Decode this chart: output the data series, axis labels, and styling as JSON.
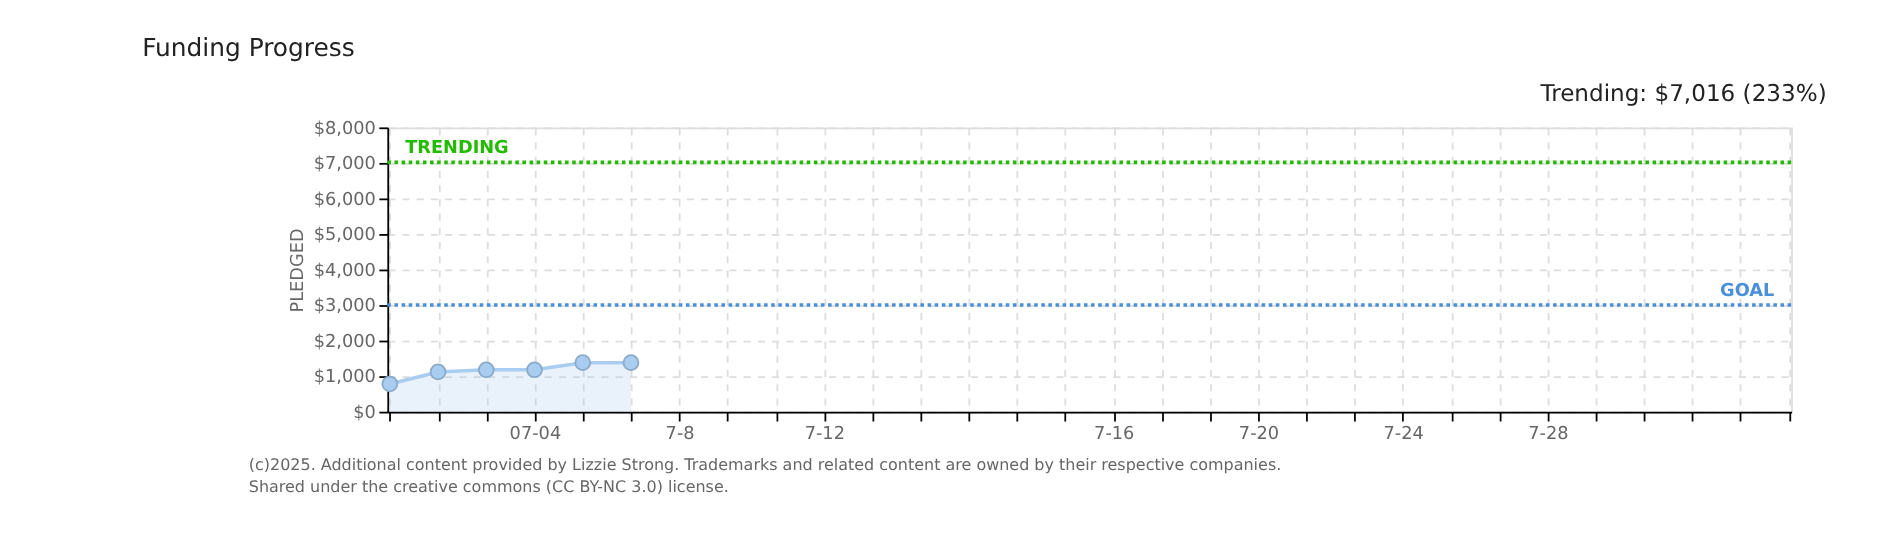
{
  "chart_data": {
    "type": "area",
    "title": "Funding Progress",
    "categories": [
      null,
      null,
      null,
      "07-04",
      null,
      null,
      "7-8",
      null,
      null,
      "7-12",
      null,
      null,
      null,
      null,
      null,
      "7-16",
      null,
      null,
      "7-20",
      null,
      null,
      "7-24",
      null,
      null,
      "7-28",
      null,
      null,
      null,
      null,
      null
    ],
    "series": [
      {
        "color": "#a9cdf0",
        "values": [
          780,
          1120,
          1180,
          1180,
          1380,
          1380,
          null,
          null,
          null,
          null,
          null,
          null,
          null,
          null,
          null,
          null,
          null,
          null,
          null,
          null,
          null,
          null,
          null,
          null,
          null,
          null,
          null,
          null,
          null,
          null
        ]
      }
    ],
    "marker": "circle",
    "ylim": [
      0,
      8000
    ],
    "yticks": [
      {
        "value": 0,
        "label": "$0"
      },
      {
        "value": 1000,
        "label": "$1,000"
      },
      {
        "value": 2000,
        "label": "$2,000"
      },
      {
        "value": 3000,
        "label": "$3,000"
      },
      {
        "value": 4000,
        "label": "$4,000"
      },
      {
        "value": 5000,
        "label": "$5,000"
      },
      {
        "value": 6000,
        "label": "$6,000"
      },
      {
        "value": 7000,
        "label": "$7,000"
      },
      {
        "value": 8000,
        "label": "$8,000"
      }
    ],
    "ylabel": "PLEDGED",
    "grid": true,
    "ref_lines": [
      {
        "axis": "y",
        "value": 7016,
        "label": "TRENDING",
        "color": "#22bb00",
        "line_style": "dotted"
      },
      {
        "axis": "y",
        "value": 3000,
        "label": "GOAL",
        "color": "#4a8fd9",
        "line_style": "dotted"
      }
    ],
    "annotations": [
      "Trending: $7,016 (233%)",
      "(c)2025. Additional content provided by Lizzie Strong. Trademarks and related content are owned by their respective companies.",
      "Shared under the creative commons (CC BY-NC 3.0) license."
    ]
  }
}
